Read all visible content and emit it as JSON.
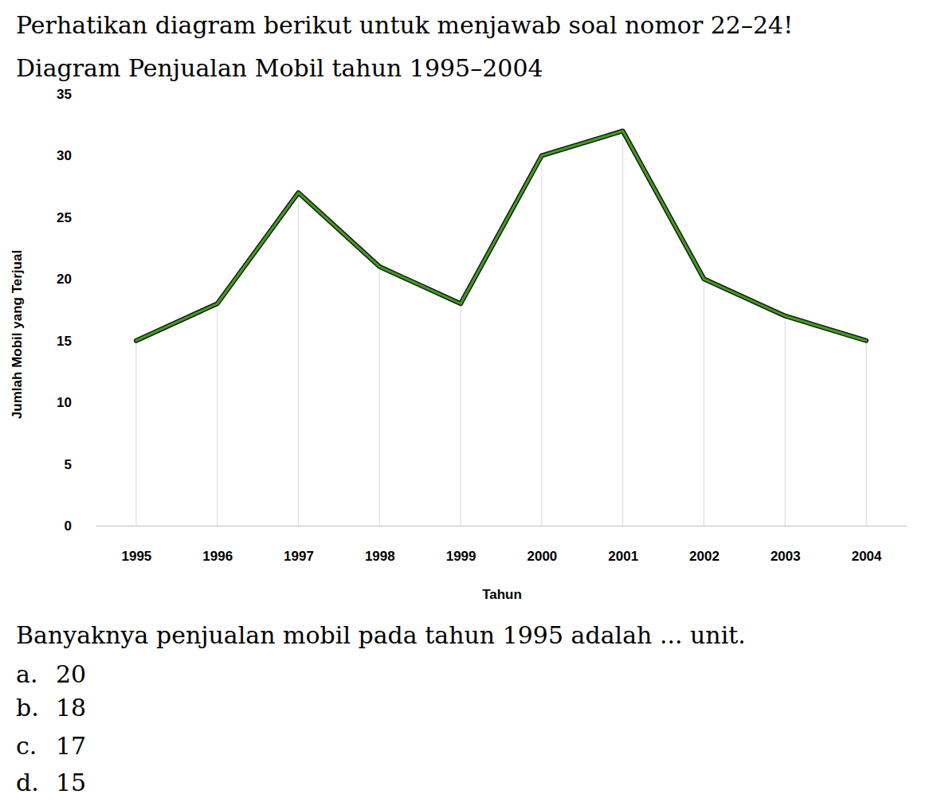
{
  "instruction": "Perhatikan diagram berikut untuk menjawab soal nomor 22–24!",
  "chart_data": {
    "type": "line",
    "title": "Diagram Penjualan Mobil tahun 1995–2004",
    "x_label": "Tahun",
    "y_label": "Jumlah Mobil yang Terjual",
    "categories": [
      "1995",
      "1996",
      "1997",
      "1998",
      "1999",
      "2000",
      "2001",
      "2002",
      "2003",
      "2004"
    ],
    "values": [
      15,
      18,
      27,
      21,
      18,
      30,
      32,
      20,
      17,
      15
    ],
    "color": "#3f9e1c",
    "ylim": [
      0,
      35
    ],
    "yticks": [
      0,
      5,
      10,
      15,
      20,
      25,
      30,
      35
    ]
  },
  "question": {
    "text": "Banyaknya penjualan mobil pada tahun 1995 adalah ... unit.",
    "options": [
      {
        "label": "a.",
        "text": "20"
      },
      {
        "label": "b.",
        "text": "18"
      },
      {
        "label": "c.",
        "text": "17"
      },
      {
        "label": "d.",
        "text": "15"
      }
    ]
  }
}
